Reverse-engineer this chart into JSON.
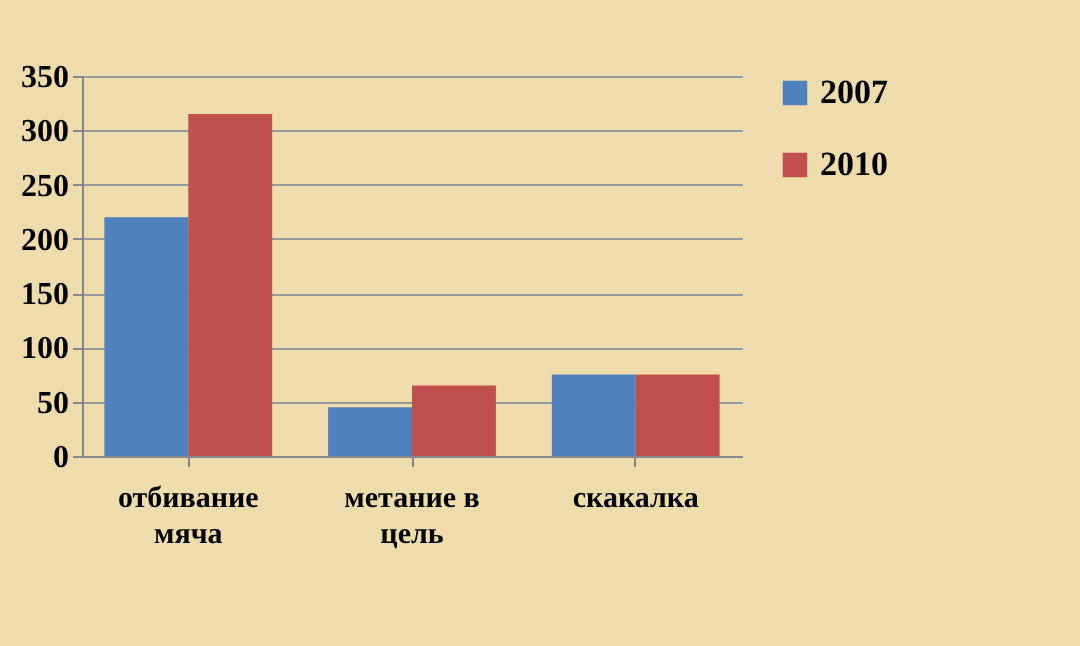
{
  "chart_data": {
    "type": "bar",
    "categories": [
      "отбивание мяча",
      "метание в цель",
      "скакалка"
    ],
    "series": [
      {
        "name": "2007",
        "color": "#4f81bd",
        "values": [
          220,
          45,
          75
        ]
      },
      {
        "name": "2010",
        "color": "#c0504d",
        "values": [
          315,
          65,
          75
        ]
      }
    ],
    "ylim": [
      0,
      350
    ],
    "yticks": [
      0,
      50,
      100,
      150,
      200,
      250,
      300,
      350
    ],
    "grid": "y",
    "legend": "top right"
  }
}
